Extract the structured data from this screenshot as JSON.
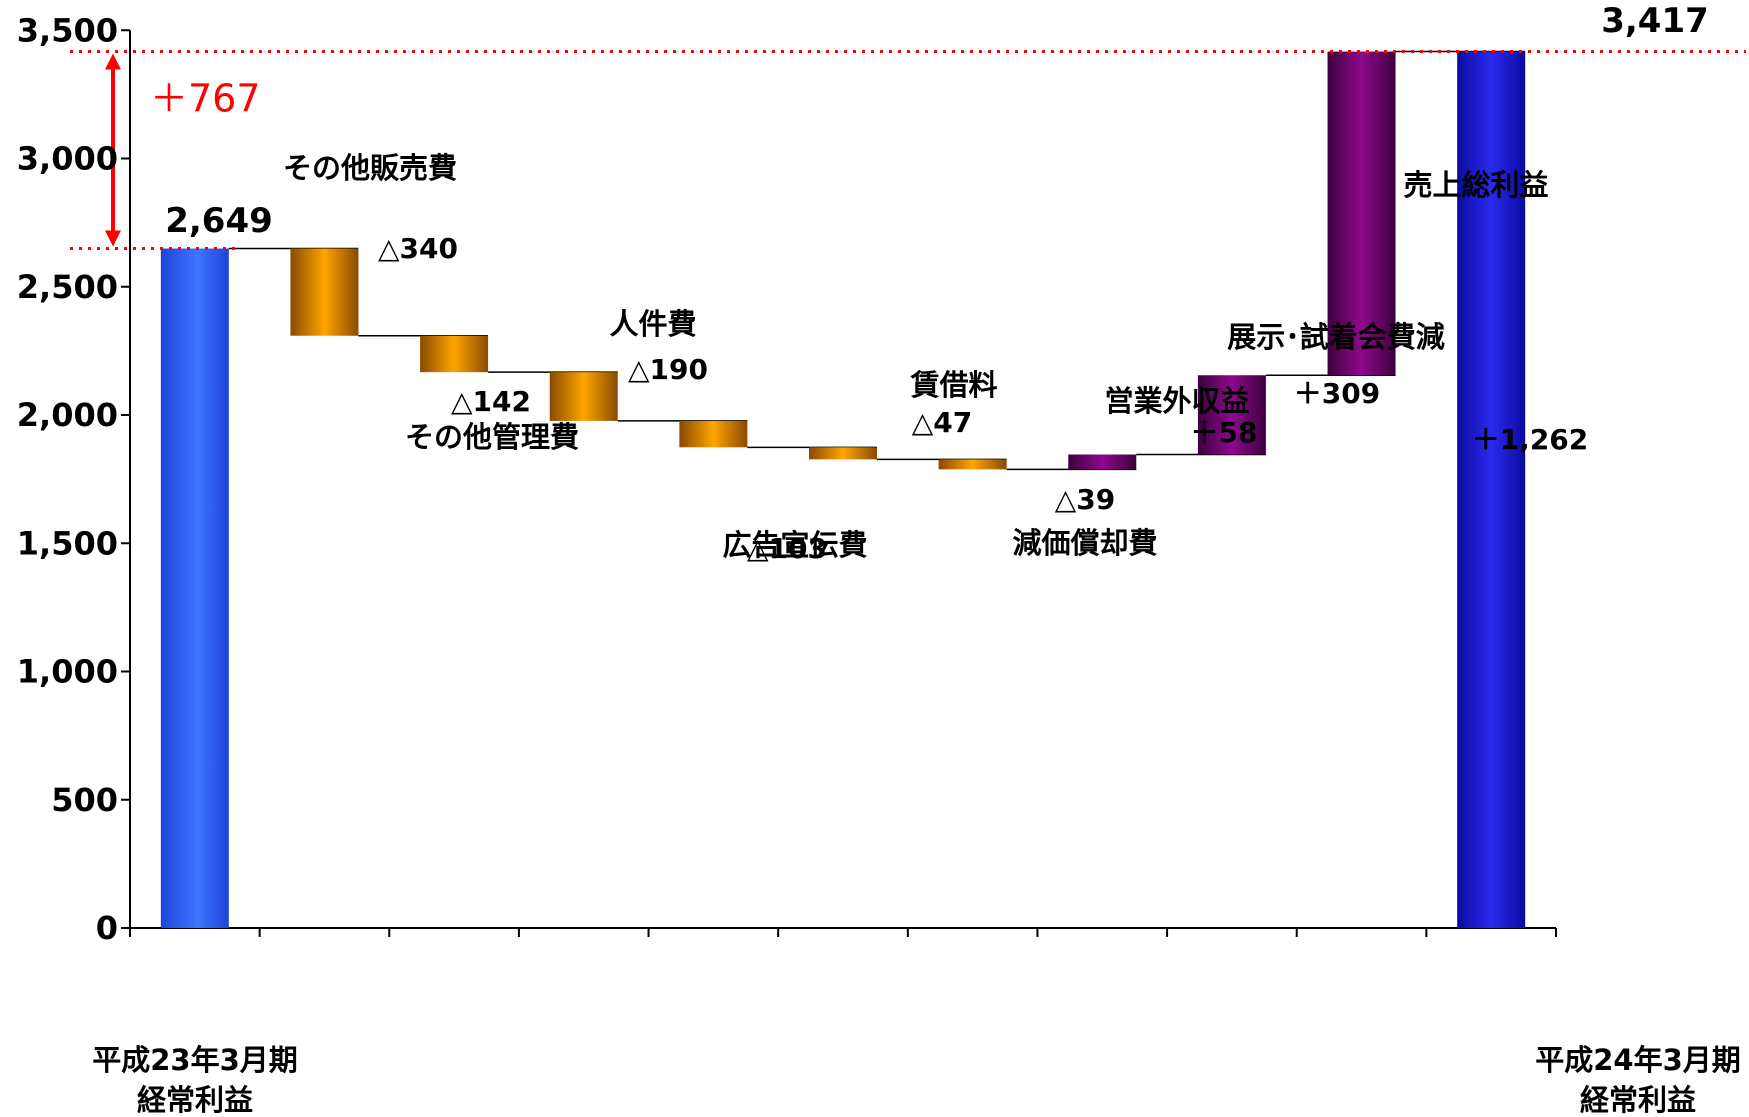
{
  "chart_data": {
    "type": "bar",
    "subtype": "waterfall",
    "title": "",
    "xlabel": "",
    "ylabel": "",
    "ylim": [
      0,
      3500
    ],
    "yticks": [
      "0",
      "500",
      "1,000",
      "1,500",
      "2,000",
      "2,500",
      "3,000",
      "3,500"
    ],
    "grid": false,
    "legend": "none",
    "colors": {
      "total": "#2255ee",
      "decrease": "#f0a000",
      "increase": "#7a007a",
      "guide": "#ff0000"
    },
    "steps": [
      {
        "kind": "total",
        "name_lines": [
          "平成23年3月期",
          "経常利益"
        ],
        "value_label": "2,649",
        "start": 0,
        "end": 2649
      },
      {
        "kind": "decrease",
        "name_lines": [
          "その他販売費"
        ],
        "value_label": "△340",
        "start": 2649,
        "end": 2309
      },
      {
        "kind": "decrease",
        "name_lines": [
          "その他管理費"
        ],
        "value_label": "△142",
        "start": 2309,
        "end": 2167
      },
      {
        "kind": "decrease",
        "name_lines": [
          "人件費"
        ],
        "value_label": "△190",
        "start": 2167,
        "end": 1977
      },
      {
        "kind": "decrease",
        "name_lines": [
          "広告宣伝費"
        ],
        "value_label": "△103",
        "start": 1977,
        "end": 1874
      },
      {
        "kind": "decrease",
        "name_lines": [
          "賃借料"
        ],
        "value_label": "△47",
        "start": 1874,
        "end": 1827
      },
      {
        "kind": "decrease",
        "name_lines": [
          "減価償却費"
        ],
        "value_label": "△39",
        "start": 1827,
        "end": 1788
      },
      {
        "kind": "increase",
        "name_lines": [
          "営業外収益"
        ],
        "value_label": "＋58",
        "start": 1788,
        "end": 1846
      },
      {
        "kind": "increase",
        "name_lines": [
          "展示･試着会費減"
        ],
        "value_label": "＋309",
        "start": 1846,
        "end": 2155
      },
      {
        "kind": "increase",
        "name_lines": [
          "売上総利益"
        ],
        "value_label": "＋1,262",
        "start": 2155,
        "end": 3417
      },
      {
        "kind": "total",
        "name_lines": [
          "平成24年3月期",
          "経常利益"
        ],
        "value_label": "3,417",
        "start": 0,
        "end": 3417
      }
    ],
    "difference": {
      "label": "＋767",
      "from": 2649,
      "to": 3417
    }
  }
}
